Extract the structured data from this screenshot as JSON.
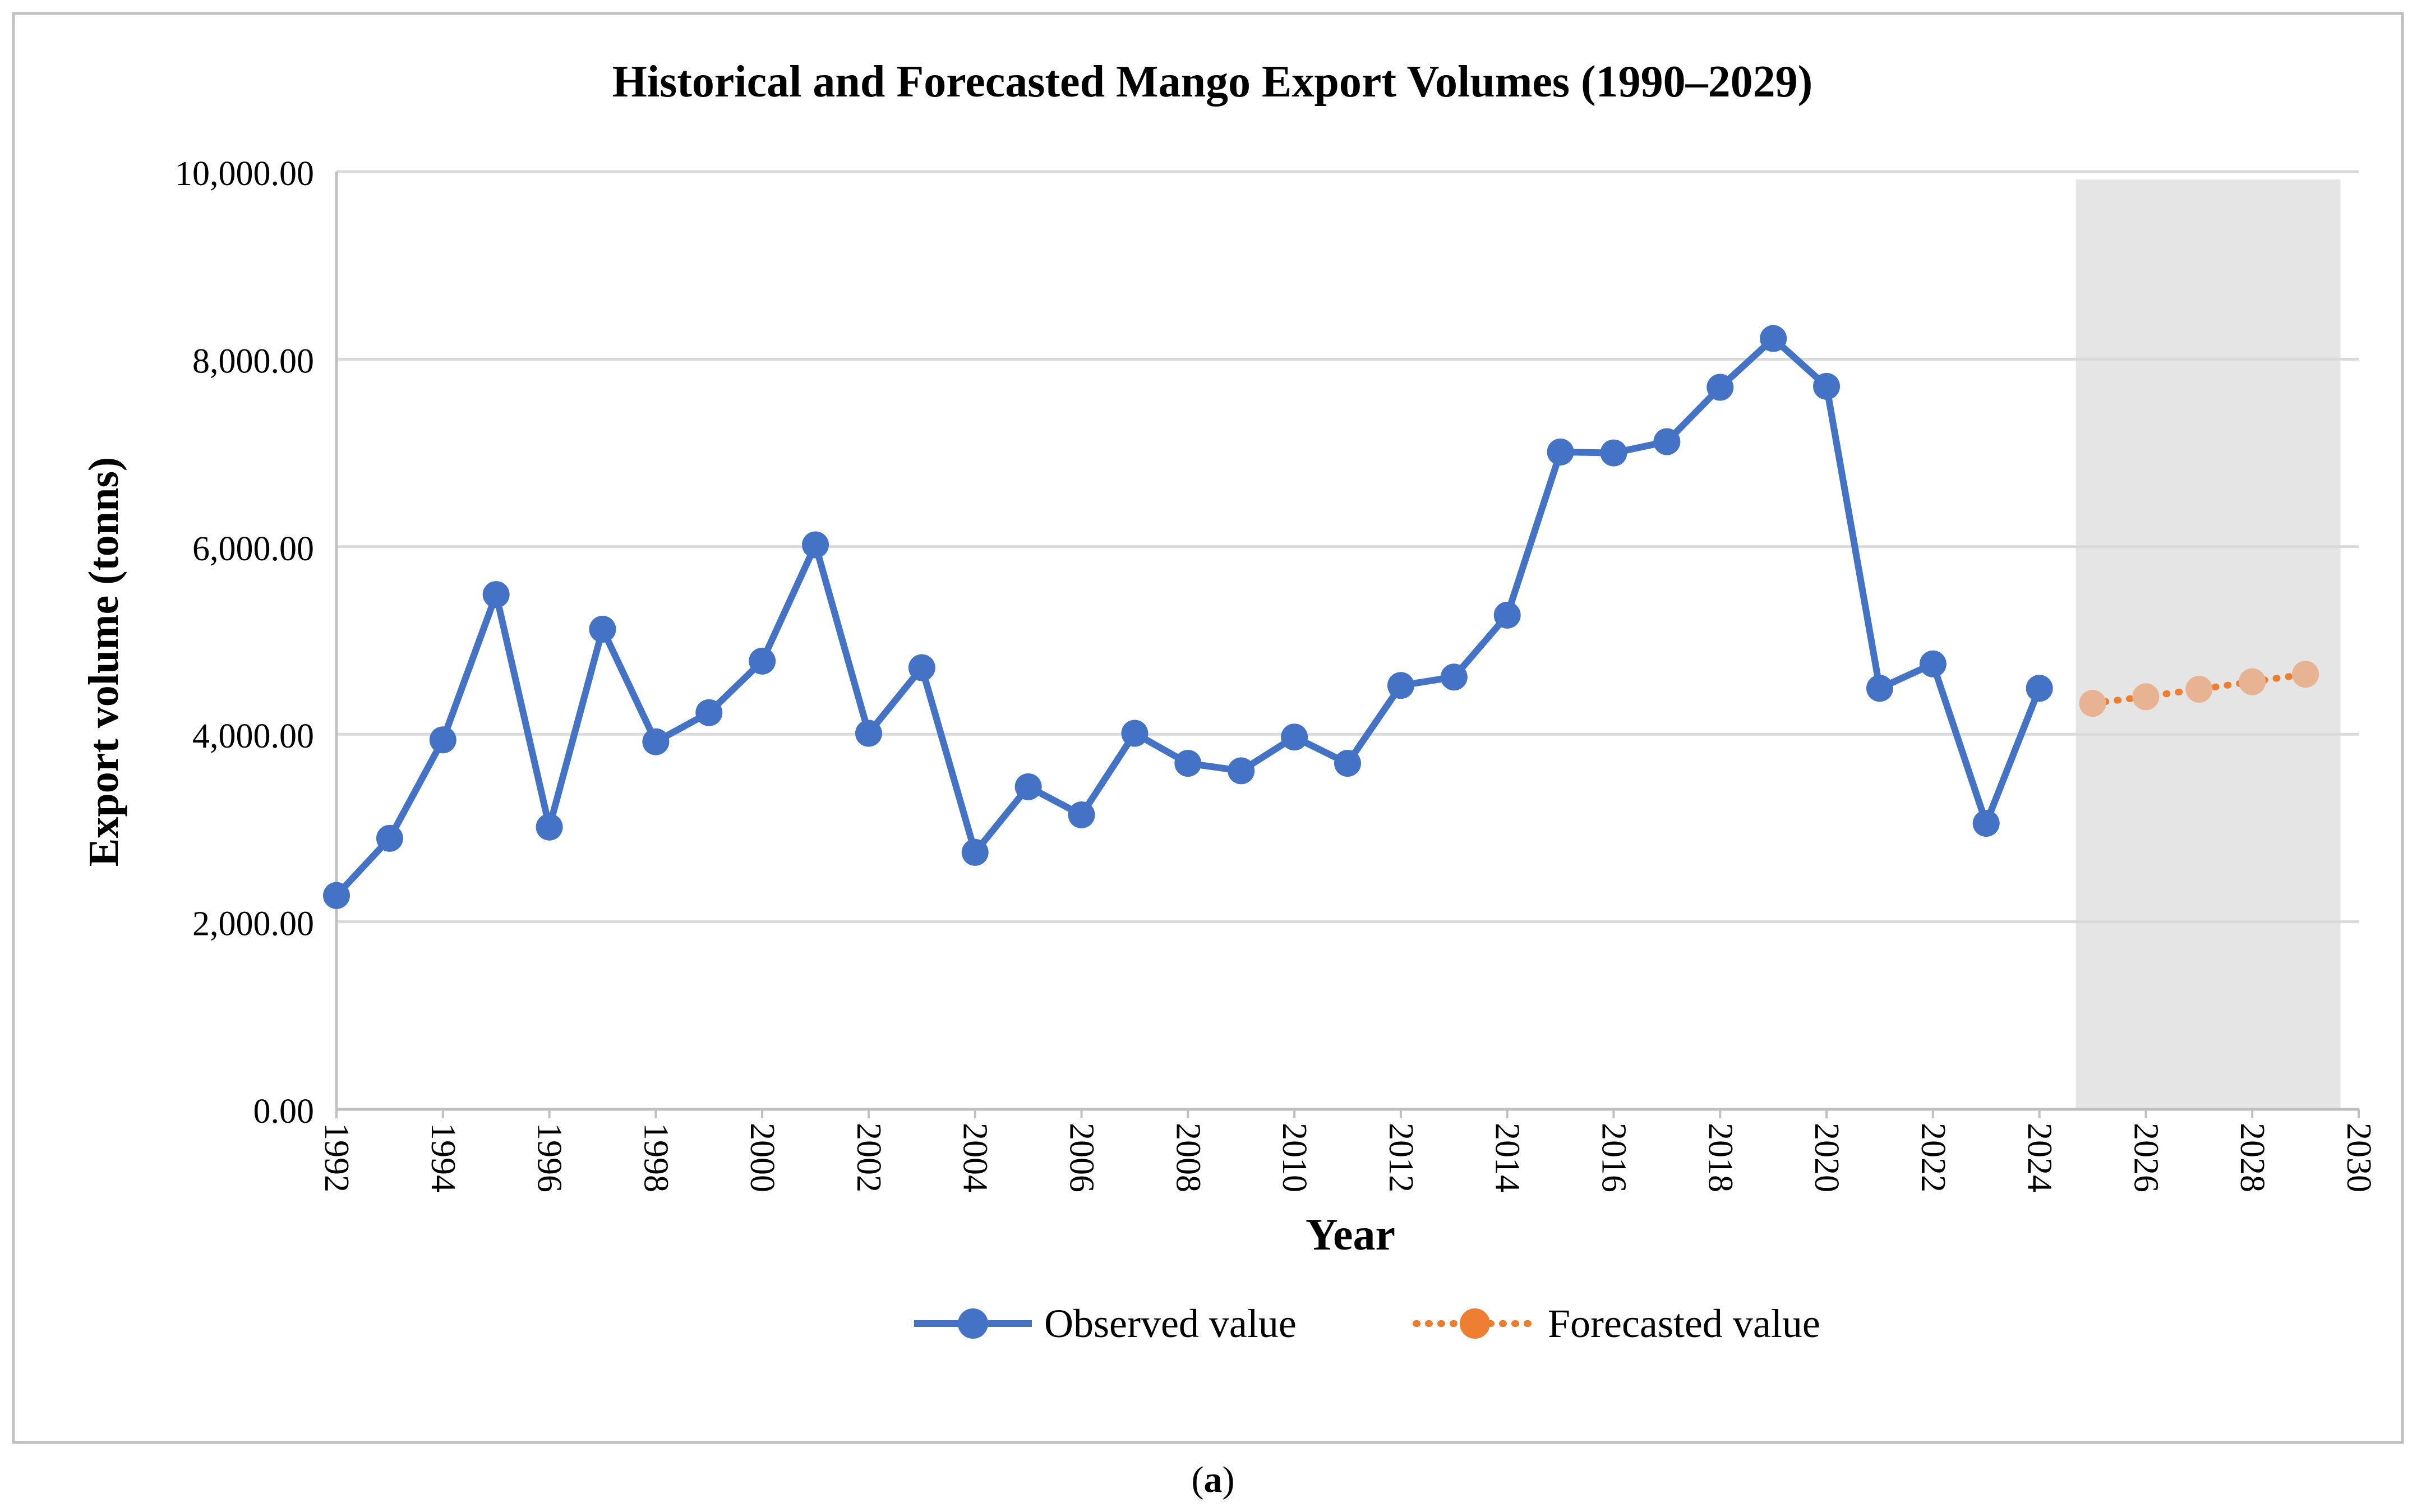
{
  "chart_data": {
    "type": "line",
    "title": "Historical and Forecasted Mango Export Volumes (1990–2029)",
    "xlabel": "Year",
    "ylabel": "Export volume (tonns)",
    "caption_open": "(",
    "caption_letter": "a",
    "caption_close": ")",
    "xlim": [
      1992,
      2030
    ],
    "ylim": [
      0,
      10000
    ],
    "x_ticks": [
      "1992",
      "1994",
      "1996",
      "1998",
      "2000",
      "2002",
      "2004",
      "2006",
      "2008",
      "2010",
      "2012",
      "2014",
      "2016",
      "2018",
      "2020",
      "2022",
      "2024",
      "2026",
      "2028",
      "2030"
    ],
    "y_ticks": [
      "0.00",
      "2,000.00",
      "4,000.00",
      "6,000.00",
      "8,000.00",
      "10,000.00"
    ],
    "grid": true,
    "legend_position": "bottom",
    "forecast_region": [
      2025,
      2029.5
    ],
    "series": [
      {
        "name": "Observed value",
        "color": "#4472C4",
        "style": "solid",
        "marker": "circle",
        "x": [
          1992,
          1993,
          1994,
          1995,
          1996,
          1997,
          1998,
          1999,
          2000,
          2001,
          2002,
          2003,
          2004,
          2005,
          2006,
          2007,
          2008,
          2009,
          2010,
          2011,
          2012,
          2013,
          2014,
          2015,
          2016,
          2017,
          2018,
          2019,
          2020,
          2021,
          2022,
          2023,
          2024
        ],
        "values": [
          2280,
          2890,
          3940,
          5490,
          3010,
          5120,
          3920,
          4230,
          4780,
          6020,
          4010,
          4710,
          2740,
          3440,
          3140,
          4010,
          3690,
          3610,
          3970,
          3690,
          4520,
          4610,
          5270,
          7010,
          7000,
          7120,
          7700,
          8220,
          7710,
          4490,
          4750,
          3050,
          4490
        ]
      },
      {
        "name": "Forecasted value",
        "color": "#ED7D31",
        "style": "dotted",
        "marker": "circle",
        "x": [
          2025,
          2026,
          2027,
          2028,
          2029
        ],
        "values": [
          4330,
          4400,
          4480,
          4560,
          4640
        ]
      }
    ],
    "colors": {
      "observed": "#4472C4",
      "forecast_line": "#ED7D31",
      "forecast_marker_in_region": "#E8B393",
      "forecast_region_fill": "#E5E5E5",
      "grid": "#D9D9D9",
      "frame": "#BFBFBF"
    }
  }
}
